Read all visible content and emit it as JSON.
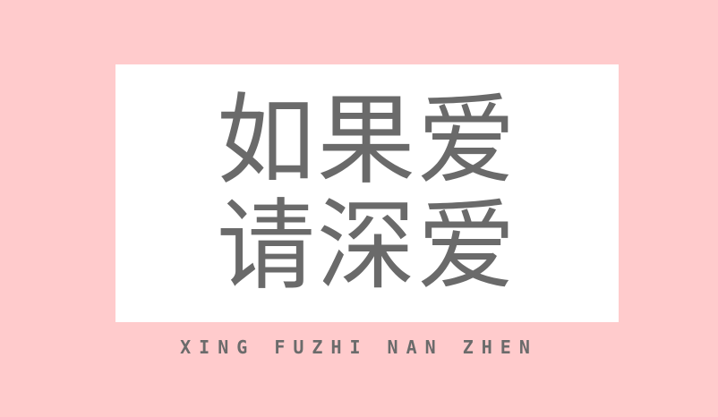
{
  "card": {
    "line1": "如果爱",
    "line2": "请深爱"
  },
  "subtitle": "XING FUZHI NAN ZHEN",
  "colors": {
    "background": "#ffcbcc",
    "card": "#ffffff",
    "text": "#6a6a6a"
  }
}
